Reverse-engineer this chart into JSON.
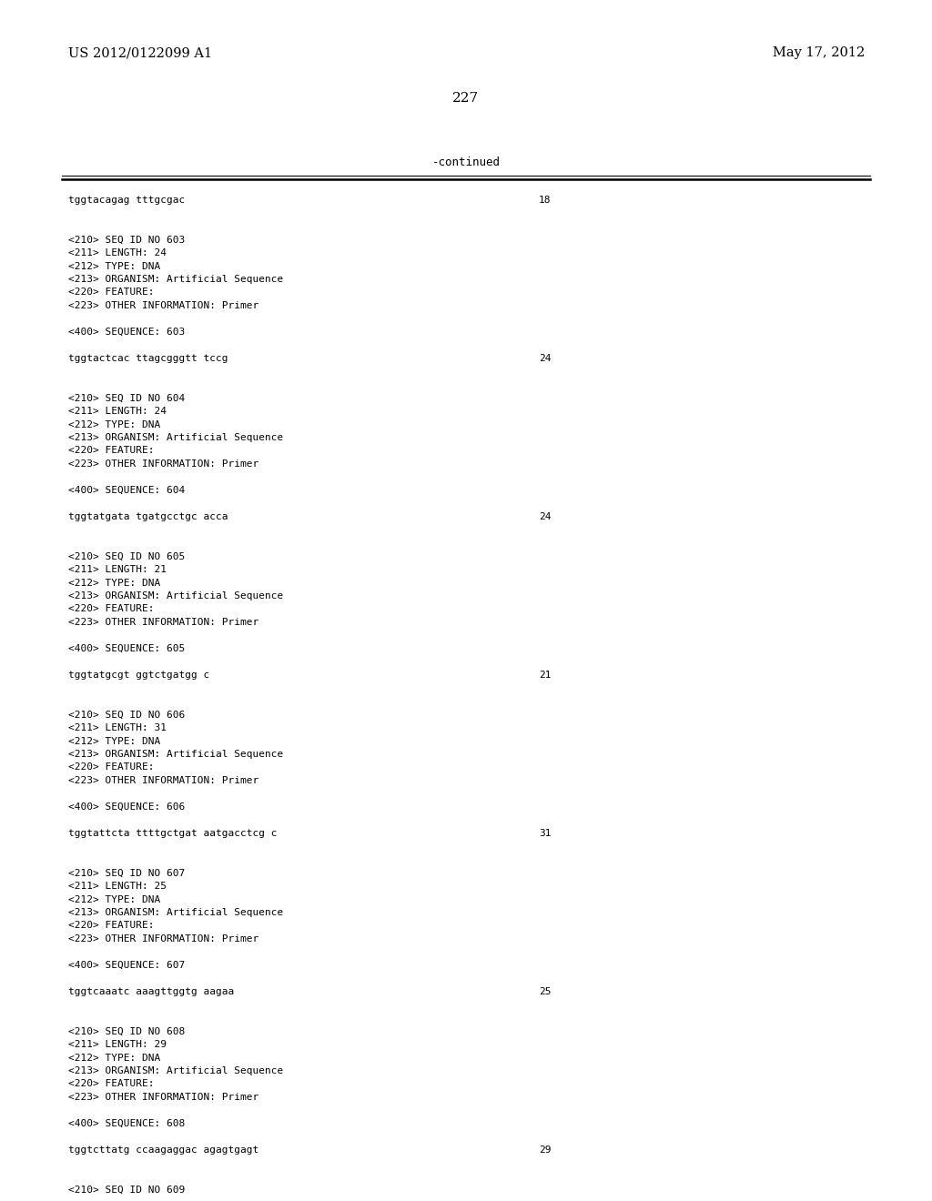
{
  "bg_color": "#ffffff",
  "header_left": "US 2012/0122099 A1",
  "header_right": "May 17, 2012",
  "page_number": "227",
  "continued_label": "-continued",
  "first_sequence_line": "tggtacagag tttgcgac",
  "first_sequence_num": "18",
  "blocks": [
    {
      "seq_id": "603",
      "length": "24",
      "type": "DNA",
      "organism": "Artificial Sequence",
      "other_info": "Primer",
      "sequence_num": "603",
      "sequence": "tggtactcac ttagcgggtt tccg",
      "seq_length_val": "24"
    },
    {
      "seq_id": "604",
      "length": "24",
      "type": "DNA",
      "organism": "Artificial Sequence",
      "other_info": "Primer",
      "sequence_num": "604",
      "sequence": "tggtatgata tgatgcctgc acca",
      "seq_length_val": "24"
    },
    {
      "seq_id": "605",
      "length": "21",
      "type": "DNA",
      "organism": "Artificial Sequence",
      "other_info": "Primer",
      "sequence_num": "605",
      "sequence": "tggtatgcgt ggtctgatgg c",
      "seq_length_val": "21"
    },
    {
      "seq_id": "606",
      "length": "31",
      "type": "DNA",
      "organism": "Artificial Sequence",
      "other_info": "Primer",
      "sequence_num": "606",
      "sequence": "tggtattcta ttttgctgat aatgacctcg c",
      "seq_length_val": "31"
    },
    {
      "seq_id": "607",
      "length": "25",
      "type": "DNA",
      "organism": "Artificial Sequence",
      "other_info": "Primer",
      "sequence_num": "607",
      "sequence": "tggtcaaatc aaagttggtg aagaa",
      "seq_length_val": "25"
    },
    {
      "seq_id": "608",
      "length": "29",
      "type": "DNA",
      "organism": "Artificial Sequence",
      "other_info": "Primer",
      "sequence_num": "608",
      "sequence": "tggtcttatg ccaagaggac agagtgagt",
      "seq_length_val": "29"
    },
    {
      "seq_id": "609",
      "length": "",
      "type": "",
      "organism": "",
      "other_info": "",
      "sequence_num": "",
      "sequence": "",
      "seq_length_val": ""
    }
  ],
  "mono_font": "DejaVu Sans Mono",
  "serif_font": "DejaVu Serif",
  "header_fontsize": 10.5,
  "body_fontsize": 8.0,
  "page_num_fontsize": 11,
  "continued_fontsize": 9.0
}
